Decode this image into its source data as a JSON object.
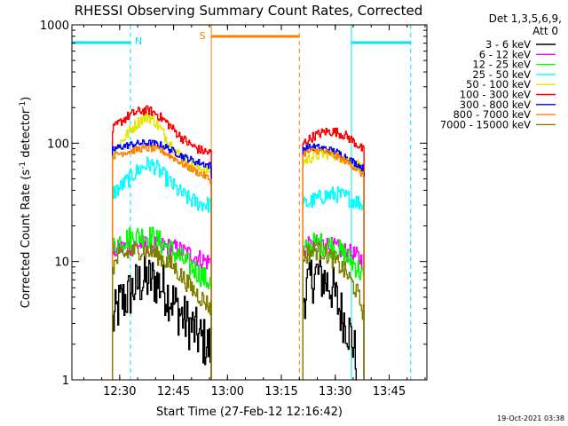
{
  "colors": {
    "background": "#ffffff",
    "axis": "#000000",
    "cyan_markers": "#00e5ee",
    "orange_markers": "#ff8000"
  },
  "chart_data": {
    "type": "line",
    "title": "RHESSI Observing Summary Count Rates, Corrected",
    "xlabel": "Start Time (27-Feb-12 12:16:42)",
    "ylabel_main": "Corrected Count Rate (s",
    "ylabel_sup1": "-1",
    "ylabel_mid": " detector",
    "ylabel_sup2": "-1",
    "ylabel_end": ")",
    "x_ticks": [
      "12:30",
      "12:45",
      "13:00",
      "13:15",
      "13:30",
      "13:45"
    ],
    "y_ticks": [
      "1",
      "10",
      "100",
      "1000"
    ],
    "yscale": "log",
    "ylim": [
      1,
      1000
    ],
    "xlim": [
      "12:16:42",
      "13:55:30"
    ],
    "legend_header": [
      "Det 1,3,5,6,9,",
      "Att 0"
    ],
    "legend_placement": "right",
    "timestamp": "19-Oct-2021 03:38",
    "annotations": {
      "night_label": "N",
      "saa_label": "S",
      "night_bars": [
        [
          "12:16:42",
          "12:33:00"
        ],
        [
          "13:34:30",
          "13:51:00"
        ]
      ],
      "night_lines": [
        "12:16:42",
        "12:33:00",
        "13:34:30",
        "13:51:00"
      ],
      "saa_bars": [
        [
          "12:55:30",
          "13:20:00"
        ]
      ],
      "saa_lines": [
        "12:55:30",
        "13:20:00"
      ]
    },
    "series": [
      {
        "name": "3 - 6 keV",
        "color": "#000000",
        "segments": [
          {
            "t": [
              "12:28:00",
              "12:30:00",
              "12:32:00",
              "12:34:00",
              "12:36:00",
              "12:38:00",
              "12:40:00",
              "12:42:00",
              "12:44:00",
              "12:46:00",
              "12:48:00",
              "12:50:00",
              "12:52:00",
              "12:54:00",
              "12:55:30"
            ],
            "y": [
              3,
              4.5,
              5,
              6,
              6.8,
              7,
              6.8,
              6,
              5,
              4,
              3.2,
              2.8,
              2.3,
              2,
              1.8
            ]
          },
          {
            "t": [
              "13:21:00",
              "13:23:00",
              "13:25:00",
              "13:27:00",
              "13:29:00",
              "13:31:00",
              "13:33:00",
              "13:35:00",
              "13:36:00"
            ],
            "y": [
              5,
              7,
              8,
              7,
              6,
              4,
              3,
              2,
              1.2
            ]
          }
        ]
      },
      {
        "name": "6 - 12 keV",
        "color": "#ff00ff",
        "segments": [
          {
            "t": [
              "12:28:00",
              "12:30:00",
              "12:33:00",
              "12:36:00",
              "12:39:00",
              "12:42:00",
              "12:45:00",
              "12:48:00",
              "12:51:00",
              "12:54:00",
              "12:55:30"
            ],
            "y": [
              12,
              13,
              13.5,
              14,
              14,
              13.5,
              13,
              12,
              11,
              10,
              10
            ]
          },
          {
            "t": [
              "13:21:00",
              "13:24:00",
              "13:27:00",
              "13:30:00",
              "13:33:00",
              "13:36:00",
              "13:38:00"
            ],
            "y": [
              13,
              14,
              14,
              13,
              12,
              11,
              10
            ]
          }
        ]
      },
      {
        "name": "12 - 25 keV",
        "color": "#00ff00",
        "segments": [
          {
            "t": [
              "12:28:00",
              "12:30:00",
              "12:33:00",
              "12:36:00",
              "12:39:00",
              "12:42:00",
              "12:45:00",
              "12:48:00",
              "12:51:00",
              "12:54:00",
              "12:55:30"
            ],
            "y": [
              13,
              15,
              16,
              16.5,
              16,
              14,
              12,
              10,
              8.5,
              7,
              6.5
            ]
          },
          {
            "t": [
              "13:21:00",
              "13:24:00",
              "13:27:00",
              "13:30:00",
              "13:33:00",
              "13:36:00",
              "13:38:00"
            ],
            "y": [
              12,
              14,
              14,
              13,
              11,
              9,
              7
            ]
          }
        ]
      },
      {
        "name": "25 - 50 keV",
        "color": "#00ffff",
        "segments": [
          {
            "t": [
              "12:28:00",
              "12:30:00",
              "12:33:00",
              "12:36:00",
              "12:38:00",
              "12:40:00",
              "12:43:00",
              "12:46:00",
              "12:49:00",
              "12:52:00",
              "12:55:30"
            ],
            "y": [
              38,
              42,
              52,
              62,
              67,
              63,
              50,
              40,
              34,
              31,
              30
            ]
          },
          {
            "t": [
              "13:21:00",
              "13:24:00",
              "13:27:00",
              "13:30:00",
              "13:33:00",
              "13:36:00",
              "13:38:00"
            ],
            "y": [
              30,
              33,
              36,
              37,
              35,
              32,
              30
            ]
          }
        ]
      },
      {
        "name": "50 - 100 keV",
        "color": "#e5e500",
        "segments": [
          {
            "t": [
              "12:28:00",
              "12:30:00",
              "12:33:00",
              "12:36:00",
              "12:38:00",
              "12:40:00",
              "12:43:00",
              "12:46:00",
              "12:49:00",
              "12:52:00",
              "12:55:30"
            ],
            "y": [
              82,
              100,
              130,
              160,
              168,
              150,
              110,
              82,
              70,
              62,
              58
            ]
          },
          {
            "t": [
              "13:21:00",
              "13:24:00",
              "13:27:00",
              "13:30:00",
              "13:33:00",
              "13:36:00",
              "13:38:00"
            ],
            "y": [
              70,
              78,
              82,
              80,
              74,
              66,
              58
            ]
          }
        ]
      },
      {
        "name": "100 - 300 keV",
        "color": "#ff0000",
        "segments": [
          {
            "t": [
              "12:28:00",
              "12:30:00",
              "12:33:00",
              "12:36:00",
              "12:38:00",
              "12:40:00",
              "12:43:00",
              "12:46:00",
              "12:49:00",
              "12:52:00",
              "12:55:30"
            ],
            "y": [
              130,
              150,
              175,
              188,
              190,
              178,
              150,
              120,
              100,
              88,
              82
            ]
          },
          {
            "t": [
              "13:21:00",
              "13:24:00",
              "13:27:00",
              "13:30:00",
              "13:33:00",
              "13:36:00",
              "13:38:00"
            ],
            "y": [
              100,
              115,
              125,
              125,
              115,
              98,
              85
            ]
          }
        ]
      },
      {
        "name": "300 - 800 keV",
        "color": "#0000ff",
        "segments": [
          {
            "t": [
              "12:28:00",
              "12:30:00",
              "12:33:00",
              "12:36:00",
              "12:39:00",
              "12:42:00",
              "12:45:00",
              "12:48:00",
              "12:51:00",
              "12:54:00",
              "12:55:30"
            ],
            "y": [
              88,
              93,
              97,
              100,
              100,
              95,
              85,
              76,
              70,
              66,
              64
            ]
          },
          {
            "t": [
              "13:21:00",
              "13:24:00",
              "13:27:00",
              "13:30:00",
              "13:33:00",
              "13:36:00",
              "13:38:00"
            ],
            "y": [
              90,
              93,
              90,
              85,
              76,
              66,
              60
            ]
          }
        ]
      },
      {
        "name": "800 - 7000 keV",
        "color": "#ff8000",
        "segments": [
          {
            "t": [
              "12:28:00",
              "12:30:00",
              "12:33:00",
              "12:36:00",
              "12:39:00",
              "12:42:00",
              "12:45:00",
              "12:48:00",
              "12:51:00",
              "12:54:00",
              "12:55:30"
            ],
            "y": [
              78,
              82,
              86,
              90,
              90,
              85,
              75,
              65,
              58,
              52,
              48
            ]
          },
          {
            "t": [
              "13:21:00",
              "13:24:00",
              "13:27:00",
              "13:30:00",
              "13:33:00",
              "13:36:00",
              "13:38:00"
            ],
            "y": [
              82,
              87,
              85,
              78,
              70,
              60,
              52
            ]
          }
        ]
      },
      {
        "name": "7000 - 15000 keV",
        "color": "#808000",
        "segments": [
          {
            "t": [
              "12:28:00",
              "12:30:00",
              "12:33:00",
              "12:36:00",
              "12:39:00",
              "12:42:00",
              "12:45:00",
              "12:48:00",
              "12:51:00",
              "12:54:00",
              "12:55:30"
            ],
            "y": [
              9,
              11,
              12,
              12.5,
              12,
              10.5,
              9,
              7,
              5.5,
              4.5,
              4
            ]
          },
          {
            "t": [
              "13:21:00",
              "13:24:00",
              "13:27:00",
              "13:30:00",
              "13:33:00",
              "13:36:00",
              "13:38:00"
            ],
            "y": [
              11,
              12.5,
              12,
              10,
              8,
              5.5,
              3.5
            ]
          }
        ]
      }
    ]
  }
}
